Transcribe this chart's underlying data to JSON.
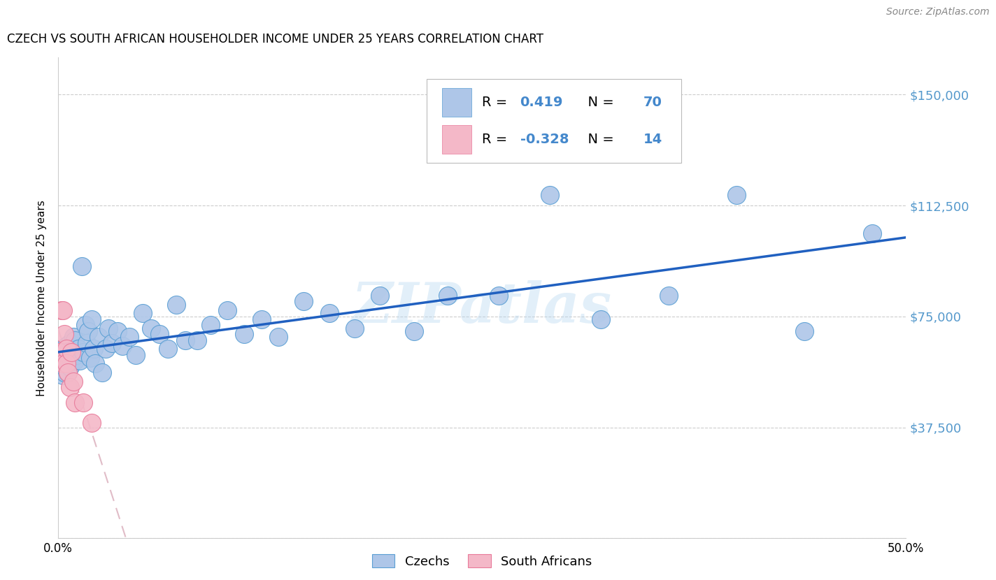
{
  "title": "CZECH VS SOUTH AFRICAN HOUSEHOLDER INCOME UNDER 25 YEARS CORRELATION CHART",
  "source": "Source: ZipAtlas.com",
  "ylabel": "Householder Income Under 25 years",
  "xlim": [
    0.0,
    0.5
  ],
  "ylim": [
    0,
    162500
  ],
  "yticks": [
    0,
    37500,
    75000,
    112500,
    150000
  ],
  "ytick_labels": [
    "",
    "$37,500",
    "$75,000",
    "$112,500",
    "$150,000"
  ],
  "xticks": [
    0.0,
    0.1,
    0.2,
    0.3,
    0.4,
    0.5
  ],
  "xtick_labels": [
    "0.0%",
    "",
    "",
    "",
    "",
    "50.0%"
  ],
  "czech_color": "#aec6e8",
  "czech_edge_color": "#5a9fd4",
  "sa_color": "#f4b8c8",
  "sa_edge_color": "#e87a9a",
  "czech_line_color": "#2060c0",
  "sa_line_color": "#e08090",
  "grid_color": "#cccccc",
  "watermark": "ZIPatlas",
  "legend_r_czech": "0.419",
  "legend_n_czech": "70",
  "legend_r_sa": "-0.328",
  "legend_n_sa": "14",
  "czech_x": [
    0.001,
    0.002,
    0.002,
    0.003,
    0.003,
    0.003,
    0.004,
    0.004,
    0.004,
    0.005,
    0.005,
    0.005,
    0.006,
    0.006,
    0.006,
    0.007,
    0.007,
    0.007,
    0.008,
    0.008,
    0.009,
    0.009,
    0.01,
    0.01,
    0.011,
    0.012,
    0.013,
    0.014,
    0.015,
    0.016,
    0.017,
    0.018,
    0.019,
    0.02,
    0.021,
    0.022,
    0.024,
    0.026,
    0.028,
    0.03,
    0.032,
    0.035,
    0.038,
    0.042,
    0.046,
    0.05,
    0.055,
    0.06,
    0.065,
    0.07,
    0.075,
    0.082,
    0.09,
    0.1,
    0.11,
    0.12,
    0.13,
    0.145,
    0.16,
    0.175,
    0.19,
    0.21,
    0.23,
    0.26,
    0.29,
    0.32,
    0.36,
    0.4,
    0.44,
    0.48
  ],
  "czech_y": [
    63000,
    60000,
    57000,
    64000,
    59000,
    55000,
    61000,
    58000,
    56000,
    65000,
    60000,
    57000,
    63000,
    59000,
    56000,
    66000,
    61000,
    58000,
    64000,
    60000,
    68000,
    63000,
    67000,
    60000,
    62000,
    64000,
    60000,
    92000,
    63000,
    72000,
    66000,
    70000,
    61000,
    74000,
    64000,
    59000,
    68000,
    56000,
    64000,
    71000,
    66000,
    70000,
    65000,
    68000,
    62000,
    76000,
    71000,
    69000,
    64000,
    79000,
    67000,
    67000,
    72000,
    77000,
    69000,
    74000,
    68000,
    80000,
    76000,
    71000,
    82000,
    70000,
    82000,
    82000,
    116000,
    74000,
    82000,
    116000,
    70000,
    103000
  ],
  "sa_x": [
    0.001,
    0.002,
    0.003,
    0.003,
    0.004,
    0.005,
    0.005,
    0.006,
    0.007,
    0.008,
    0.009,
    0.01,
    0.015,
    0.02
  ],
  "sa_y": [
    63000,
    77000,
    59000,
    77000,
    69000,
    64000,
    59000,
    56000,
    51000,
    63000,
    53000,
    46000,
    46000,
    39000
  ]
}
